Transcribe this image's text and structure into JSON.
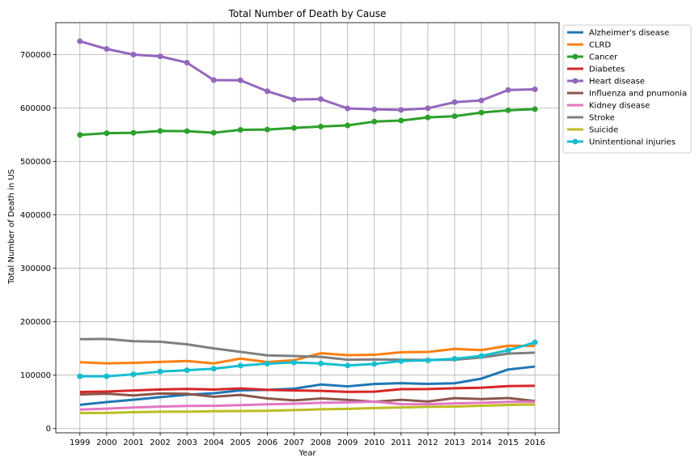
{
  "chart_data": {
    "type": "line",
    "title": "Total Number of Death by Cause",
    "xlabel": "Year",
    "ylabel": "Total Number of Death in US",
    "x": [
      "1999",
      "2000",
      "2001",
      "2002",
      "2003",
      "2004",
      "2005",
      "2006",
      "2007",
      "2008",
      "2009",
      "2010",
      "2011",
      "2012",
      "2013",
      "2014",
      "2015",
      "2016"
    ],
    "ylim": [
      -8000,
      760000
    ],
    "yticks": [
      0,
      100000,
      200000,
      300000,
      400000,
      500000,
      600000,
      700000
    ],
    "ytick_labels": [
      "0",
      "100000",
      "200000",
      "300000",
      "400000",
      "500000",
      "600000",
      "700000"
    ],
    "grid": true,
    "legend_position": "outside-top-right",
    "series": [
      {
        "name": "Alzheimer's disease",
        "color": "#1f77b4",
        "marker": false,
        "values": [
          44536,
          49558,
          53852,
          58866,
          63457,
          65965,
          71599,
          72432,
          74632,
          82435,
          79003,
          83494,
          84974,
          83637,
          84767,
          93541,
          110561,
          116103
        ]
      },
      {
        "name": "CLRD",
        "color": "#ff7f0e",
        "marker": false,
        "values": [
          124181,
          122009,
          123013,
          124816,
          126382,
          121987,
          130933,
          124583,
          127924,
          141090,
          137353,
          138080,
          142943,
          143489,
          149205,
          146876,
          155041,
          154596
        ]
      },
      {
        "name": "Cancer",
        "color": "#2ca02c",
        "marker": true,
        "values": [
          549838,
          553091,
          553768,
          557271,
          556902,
          553888,
          559312,
          559888,
          562875,
          565469,
          567628,
          574743,
          576691,
          582623,
          584881,
          591700,
          595930,
          598038
        ]
      },
      {
        "name": "Diabetes",
        "color": "#d62728",
        "marker": false,
        "values": [
          68399,
          69301,
          71372,
          73249,
          74219,
          73138,
          75119,
          72449,
          71382,
          70553,
          68705,
          69071,
          73831,
          73932,
          75578,
          76488,
          79535,
          80058
        ]
      },
      {
        "name": "Heart disease",
        "color": "#9467bd",
        "marker": true,
        "values": [
          725192,
          710760,
          700142,
          696947,
          685089,
          652486,
          652091,
          631636,
          616067,
          616828,
          599413,
          597689,
          596577,
          599711,
          611105,
          614348,
          633842,
          635260
        ]
      },
      {
        "name": "Influenza and pnumonia",
        "color": "#8c564b",
        "marker": false,
        "values": [
          63730,
          65313,
          62034,
          65681,
          65163,
          59664,
          63001,
          56326,
          52717,
          56284,
          53692,
          50097,
          53826,
          50636,
          56979,
          55227,
          57062,
          51537
        ]
      },
      {
        "name": "Kidney disease",
        "color": "#e377c2",
        "marker": false,
        "values": [
          35525,
          37251,
          39480,
          40974,
          42453,
          42480,
          43901,
          45344,
          46448,
          48237,
          48935,
          50476,
          45591,
          45622,
          47112,
          48146,
          49959,
          50046
        ]
      },
      {
        "name": "Stroke",
        "color": "#7f7f7f",
        "marker": false,
        "values": [
          167366,
          167661,
          163538,
          162672,
          157689,
          150074,
          143579,
          137119,
          135952,
          134148,
          128842,
          129476,
          128932,
          128546,
          128978,
          133103,
          140323,
          142142
        ]
      },
      {
        "name": "Suicide",
        "color": "#bcbd22",
        "marker": false,
        "values": [
          29199,
          29350,
          30622,
          31655,
          31484,
          32439,
          32637,
          33300,
          34598,
          36035,
          36909,
          38364,
          39518,
          40600,
          41149,
          42773,
          44193,
          44965
        ]
      },
      {
        "name": "Unintentional injuries",
        "color": "#17becf",
        "marker": true,
        "values": [
          97860,
          97900,
          101537,
          106742,
          109277,
          112012,
          117809,
          121599,
          123706,
          121902,
          118021,
          120859,
          126438,
          127792,
          130557,
          136053,
          146571,
          161374
        ]
      }
    ]
  }
}
